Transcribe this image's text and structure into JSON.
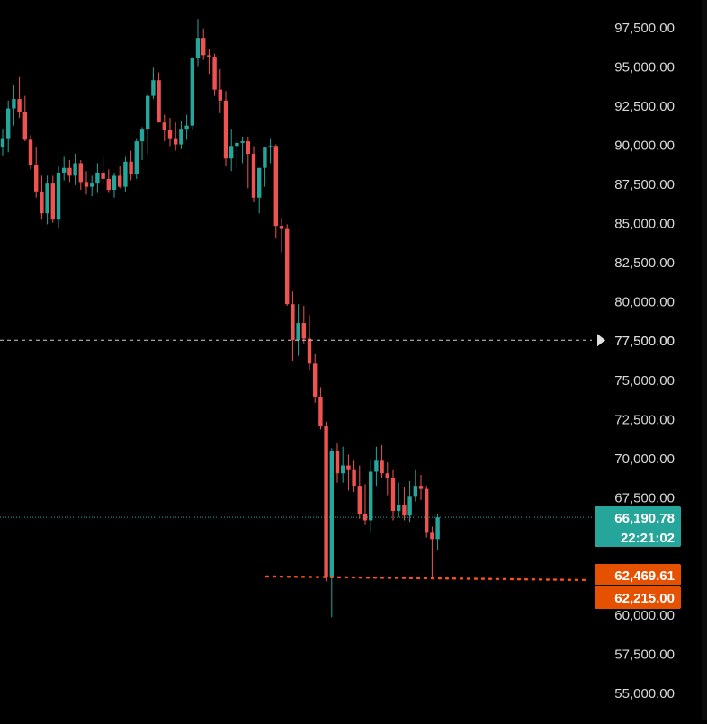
{
  "chart_data": {
    "type": "candlestick",
    "title": "",
    "xlabel": "",
    "ylabel": "",
    "ylim": [
      53800,
      98600
    ],
    "y_ticks": [
      "97,500.00",
      "95,000.00",
      "92,500.00",
      "90,000.00",
      "87,500.00",
      "85,000.00",
      "82,500.00",
      "80,000.00",
      "77,500.00",
      "75,000.00",
      "72,500.00",
      "70,000.00",
      "67,500.00",
      "60,000.00",
      "57,500.00",
      "55,000.00"
    ],
    "y_tick_values": [
      97500,
      95000,
      92500,
      90000,
      87500,
      85000,
      82500,
      80000,
      77500,
      75000,
      72500,
      70000,
      67500,
      60000,
      57500,
      55000
    ],
    "up_color": "#26a69a",
    "down_color": "#ef5350",
    "candles": [
      [
        89800,
        91000,
        89300,
        90400
      ],
      [
        90400,
        92800,
        89500,
        92300
      ],
      [
        92300,
        93800,
        91200,
        92900
      ],
      [
        92900,
        94300,
        91700,
        92100
      ],
      [
        92100,
        93100,
        90200,
        90300
      ],
      [
        90300,
        90600,
        88400,
        88700
      ],
      [
        88700,
        89800,
        86600,
        87000
      ],
      [
        87000,
        88000,
        85200,
        85600
      ],
      [
        85600,
        88000,
        84900,
        87500
      ],
      [
        87500,
        88000,
        85000,
        85200
      ],
      [
        85200,
        88600,
        84700,
        88200
      ],
      [
        88200,
        89200,
        87700,
        88500
      ],
      [
        88500,
        89000,
        87600,
        88000
      ],
      [
        88000,
        89400,
        87400,
        88800
      ],
      [
        88800,
        89000,
        87100,
        87600
      ],
      [
        87600,
        88300,
        86800,
        87300
      ],
      [
        87300,
        88000,
        86700,
        87500
      ],
      [
        87500,
        88800,
        86900,
        88200
      ],
      [
        88200,
        89200,
        87500,
        87800
      ],
      [
        87800,
        88400,
        86900,
        87100
      ],
      [
        87100,
        88200,
        86600,
        88000
      ],
      [
        88000,
        88600,
        87200,
        87300
      ],
      [
        87300,
        89200,
        87000,
        88900
      ],
      [
        88900,
        89600,
        87700,
        88100
      ],
      [
        88100,
        90400,
        87800,
        90200
      ],
      [
        90200,
        91100,
        89000,
        91000
      ],
      [
        91000,
        93300,
        89400,
        93100
      ],
      [
        93100,
        94900,
        92900,
        94100
      ],
      [
        94100,
        94600,
        91800,
        91400
      ],
      [
        91400,
        91900,
        90200,
        90900
      ],
      [
        90900,
        91700,
        89900,
        90400
      ],
      [
        90400,
        91400,
        89600,
        90000
      ],
      [
        90000,
        91500,
        89700,
        91000
      ],
      [
        91000,
        91900,
        90300,
        91200
      ],
      [
        91200,
        95600,
        90900,
        95500
      ],
      [
        95500,
        98000,
        95000,
        96800
      ],
      [
        96800,
        97400,
        95400,
        95700
      ],
      [
        95700,
        96100,
        94500,
        95600
      ],
      [
        95600,
        95800,
        93100,
        93500
      ],
      [
        93500,
        94800,
        92000,
        92800
      ],
      [
        92800,
        93400,
        88600,
        89100
      ],
      [
        89100,
        91000,
        88300,
        89900
      ],
      [
        89900,
        90500,
        88500,
        90100
      ],
      [
        90100,
        90500,
        88800,
        90200
      ],
      [
        90200,
        90500,
        87200,
        89400
      ],
      [
        89400,
        89900,
        86300,
        86600
      ],
      [
        86600,
        88200,
        85600,
        88500
      ],
      [
        88500,
        89700,
        87300,
        89800
      ],
      [
        89800,
        90400,
        88800,
        89900
      ],
      [
        89900,
        90000,
        84000,
        84800
      ],
      [
        84800,
        85300,
        83100,
        84600
      ],
      [
        84600,
        84900,
        79700,
        79800
      ],
      [
        79800,
        80600,
        76200,
        77500
      ],
      [
        77500,
        79800,
        76500,
        78600
      ],
      [
        78600,
        79700,
        77300,
        77600
      ],
      [
        77600,
        79100,
        75600,
        76000
      ],
      [
        76000,
        76600,
        73500,
        73900
      ],
      [
        73900,
        74500,
        71800,
        72000
      ],
      [
        72000,
        72300,
        62100,
        62400
      ],
      [
        62400,
        70600,
        59800,
        70400
      ],
      [
        70400,
        70900,
        68400,
        69000
      ],
      [
        69000,
        70700,
        68400,
        69500
      ],
      [
        69500,
        70200,
        67900,
        69200
      ],
      [
        69200,
        69800,
        67800,
        68200
      ],
      [
        68200,
        69500,
        66100,
        66400
      ],
      [
        66400,
        68300,
        65700,
        66000
      ],
      [
        66000,
        69900,
        65200,
        69100
      ],
      [
        69100,
        70700,
        68200,
        69800
      ],
      [
        69800,
        70800,
        68700,
        69000
      ],
      [
        69000,
        69700,
        67600,
        68700
      ],
      [
        68700,
        69200,
        66000,
        66600
      ],
      [
        66600,
        68400,
        66200,
        67000
      ],
      [
        67000,
        68100,
        66000,
        66300
      ],
      [
        66300,
        68500,
        65900,
        67500
      ],
      [
        67500,
        69200,
        67200,
        68200
      ],
      [
        68200,
        68900,
        67300,
        68000
      ],
      [
        68000,
        68200,
        64900,
        65200
      ],
      [
        65200,
        65600,
        62300,
        64800
      ],
      [
        64800,
        66400,
        64100,
        66190
      ]
    ],
    "last_price_line": 77500,
    "last_price_label": "77,500.00",
    "current_price": 66190.78,
    "current_price_label": "66,190.78",
    "countdown_label": "22:21:02",
    "support_line_a": 62469.61,
    "support_line_a_label": "62,469.61",
    "support_line_b": 62215,
    "support_line_b_label": "62,215.00",
    "colors": {
      "background": "#000000",
      "axis_text": "#d9d9d9",
      "current_label_bg": "#26a69a",
      "support_label_bg": "#e65100",
      "support_line": "#f4511e"
    }
  }
}
